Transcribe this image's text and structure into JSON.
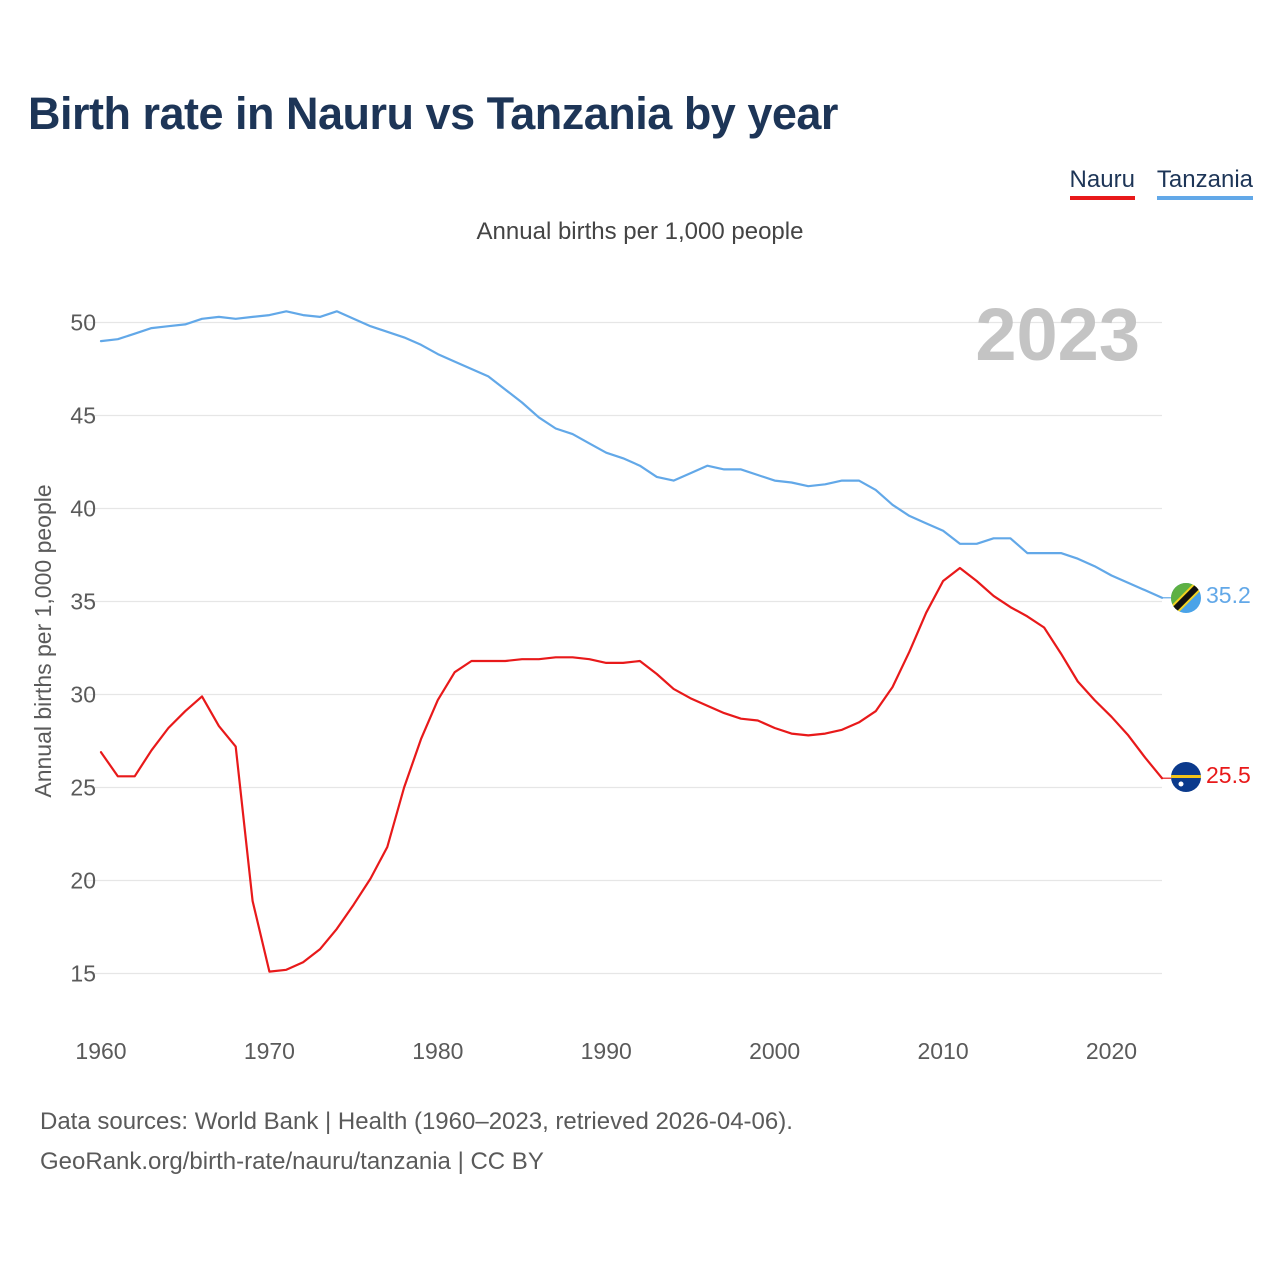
{
  "page": {
    "title": "Birth rate in Nauru vs Tanzania by year",
    "subtitle": "Annual births per 1,000 people",
    "footer_sources": "Data sources: World Bank | Health (1960–2023, retrieved 2026-04-06).",
    "footer_link": "GeoRank.org/birth-rate/nauru/tanzania | CC BY"
  },
  "legend": [
    {
      "name": "Nauru",
      "color": "#e8191a"
    },
    {
      "name": "Tanzania",
      "color": "#62a8e8"
    }
  ],
  "chart_data": {
    "type": "line",
    "title": "Birth rate in Nauru vs Tanzania by year",
    "subtitle": "Annual births per 1,000 people",
    "xlabel": "",
    "ylabel": "Annual births per 1,000 people",
    "year_watermark": "2023",
    "xlim": [
      1960,
      2023
    ],
    "ylim": [
      12.5,
      52.5
    ],
    "xticks": [
      1960,
      1970,
      1980,
      1990,
      2000,
      2010,
      2020
    ],
    "yticks": [
      15,
      20,
      25,
      30,
      35,
      40,
      45,
      50
    ],
    "grid": true,
    "legend_position": "top-right",
    "series": [
      {
        "name": "Nauru",
        "color": "#e8191a",
        "end_label": "25.5",
        "x_start": 1960,
        "values": [
          26.9,
          25.6,
          25.6,
          27.0,
          28.2,
          29.1,
          29.9,
          28.3,
          27.2,
          18.9,
          15.1,
          15.2,
          15.6,
          16.3,
          17.4,
          18.7,
          20.1,
          21.8,
          25.0,
          27.6,
          29.7,
          31.2,
          31.8,
          31.8,
          31.8,
          31.9,
          31.9,
          32.0,
          32.0,
          31.9,
          31.7,
          31.7,
          31.8,
          31.1,
          30.3,
          29.8,
          29.4,
          29.0,
          28.7,
          28.6,
          28.2,
          27.9,
          27.8,
          27.9,
          28.1,
          28.5,
          29.1,
          30.4,
          32.3,
          34.4,
          36.1,
          36.8,
          36.1,
          35.3,
          34.7,
          34.2,
          33.6,
          32.2,
          30.7,
          29.7,
          28.8,
          27.8,
          26.6,
          25.5
        ]
      },
      {
        "name": "Tanzania",
        "color": "#62a8e8",
        "end_label": "35.2",
        "x_start": 1960,
        "values": [
          49.0,
          49.1,
          49.4,
          49.7,
          49.8,
          49.9,
          50.2,
          50.3,
          50.2,
          50.3,
          50.4,
          50.6,
          50.4,
          50.3,
          50.6,
          50.2,
          49.8,
          49.5,
          49.2,
          48.8,
          48.3,
          47.9,
          47.5,
          47.1,
          46.4,
          45.7,
          44.9,
          44.3,
          44.0,
          43.5,
          43.0,
          42.7,
          42.3,
          41.7,
          41.5,
          41.9,
          42.3,
          42.1,
          42.1,
          41.8,
          41.5,
          41.4,
          41.2,
          41.3,
          41.5,
          41.5,
          41.0,
          40.2,
          39.6,
          39.2,
          38.8,
          38.1,
          38.1,
          38.4,
          38.4,
          37.6,
          37.6,
          37.6,
          37.3,
          36.9,
          36.4,
          36.0,
          35.6,
          35.2
        ]
      }
    ]
  }
}
